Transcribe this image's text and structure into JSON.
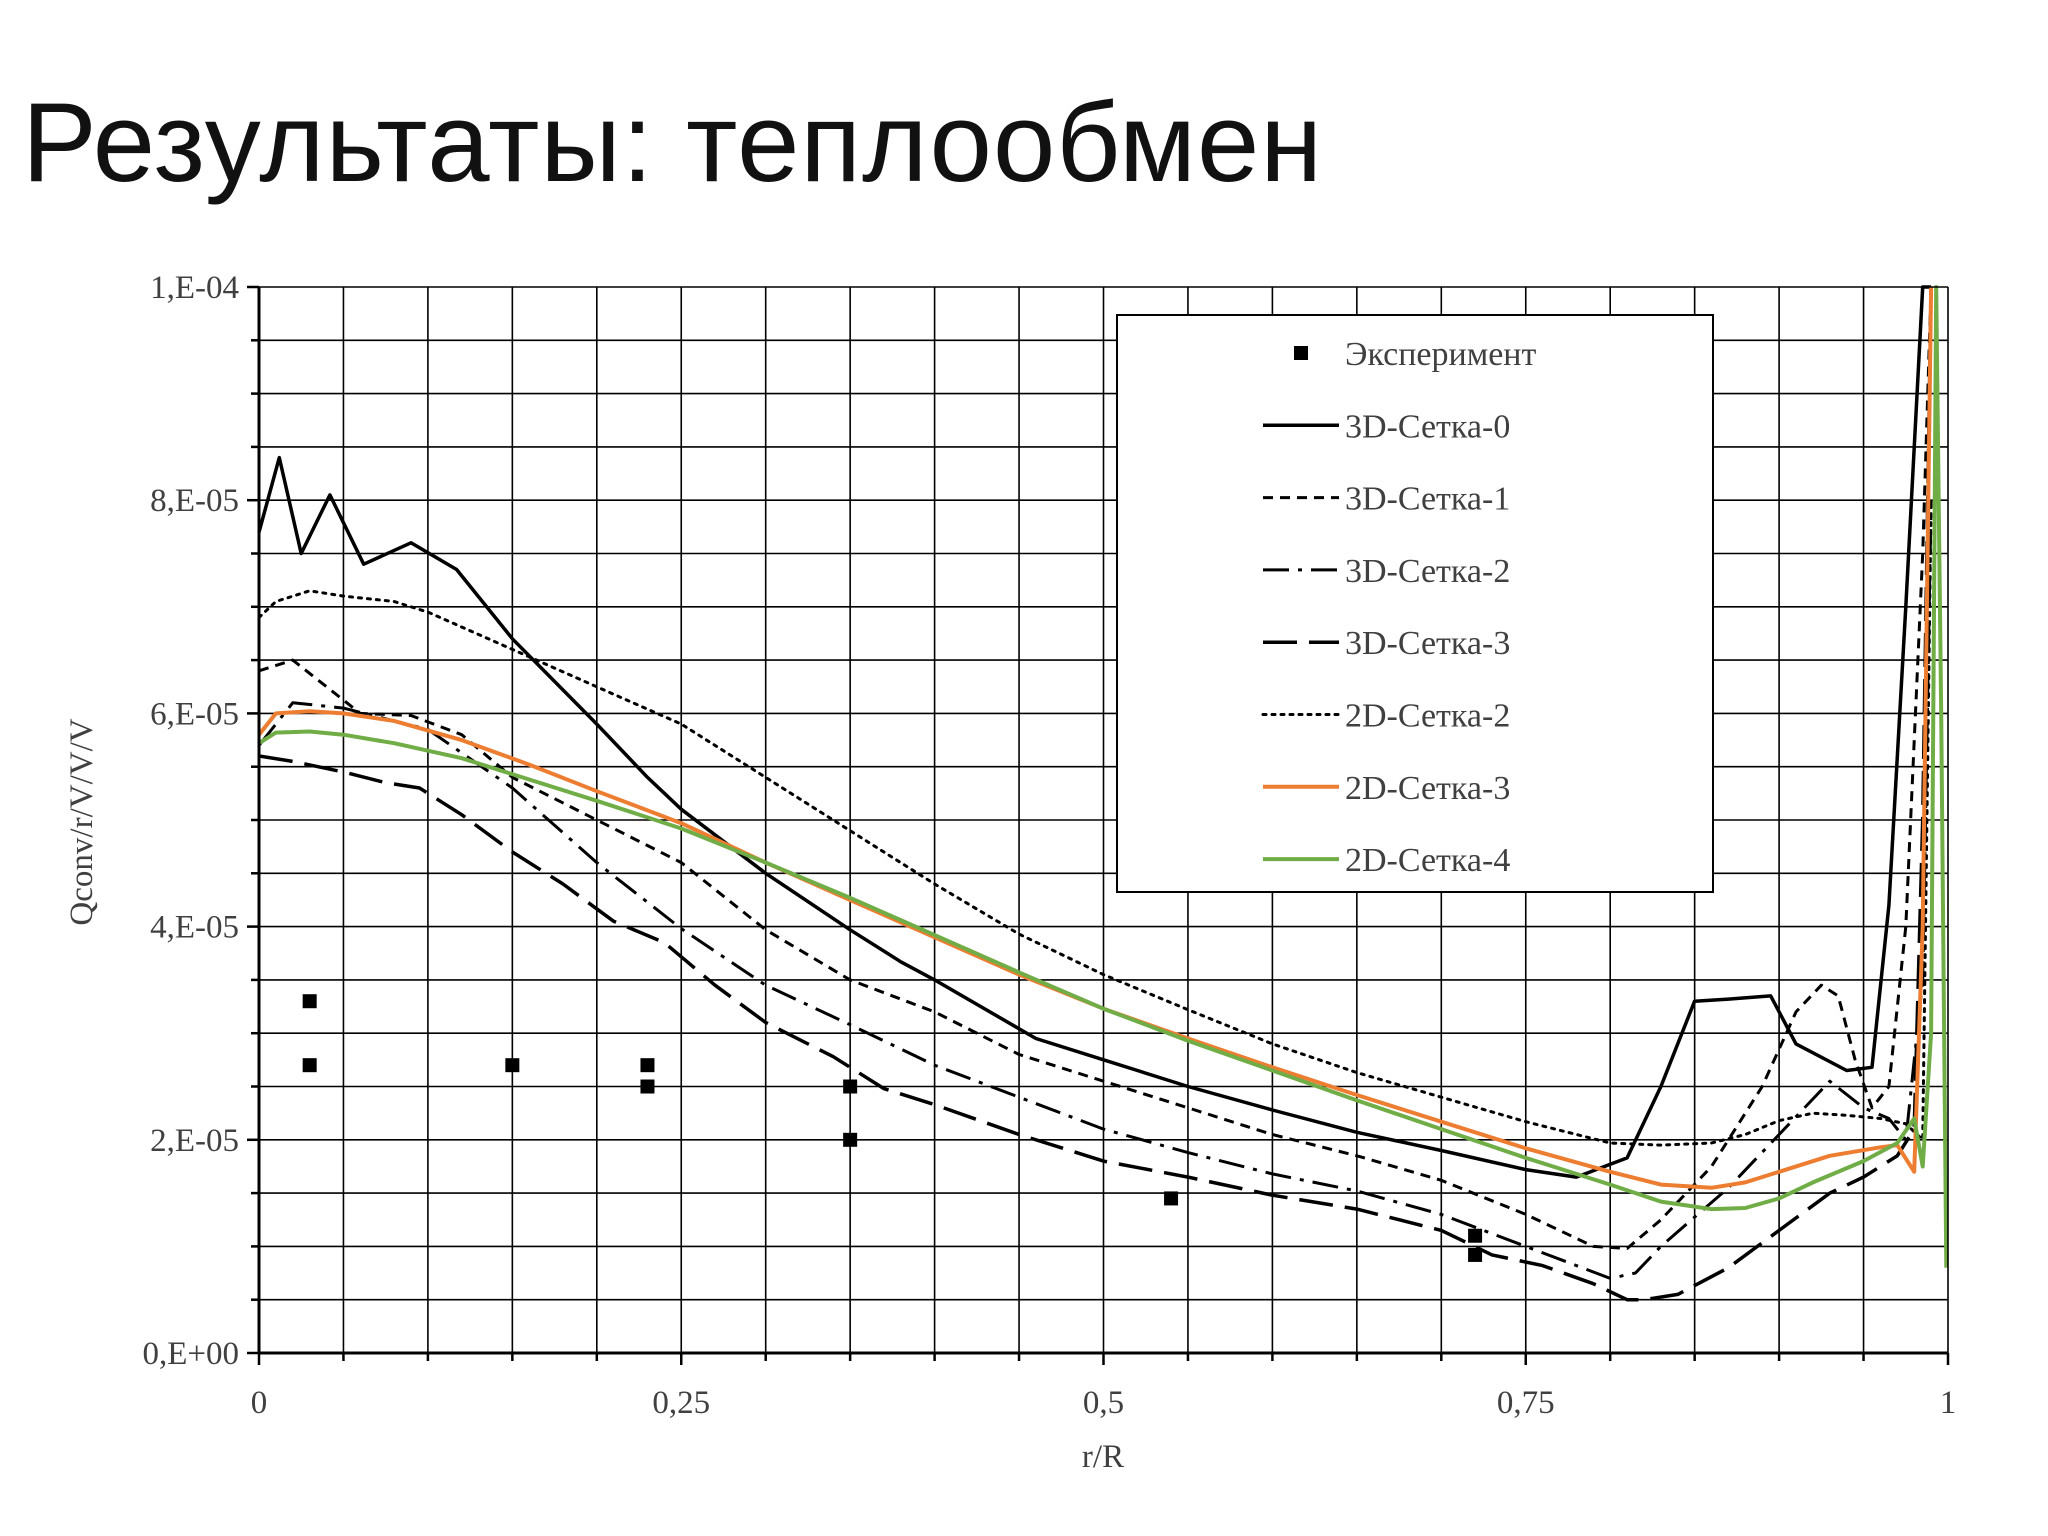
{
  "slide": {
    "title": "Результаты: теплообмен"
  },
  "chart_data": {
    "type": "line",
    "xlabel": "r/R",
    "ylabel": "Qconv/r/V/V/V",
    "xlim": [
      0,
      1
    ],
    "ylim": [
      0,
      0.0001
    ],
    "xticks": [
      {
        "value": 0,
        "label": "0"
      },
      {
        "value": 0.25,
        "label": "0,25"
      },
      {
        "value": 0.5,
        "label": "0,5"
      },
      {
        "value": 0.75,
        "label": "0,75"
      },
      {
        "value": 1,
        "label": "1"
      }
    ],
    "yticks": [
      {
        "value": 0,
        "label": "0,E+00"
      },
      {
        "value": 2e-05,
        "label": "2,E-05"
      },
      {
        "value": 4e-05,
        "label": "4,E-05"
      },
      {
        "value": 6e-05,
        "label": "6,E-05"
      },
      {
        "value": 8e-05,
        "label": "8,E-05"
      },
      {
        "value": 0.0001,
        "label": "1,E-04"
      }
    ],
    "grid": true,
    "legend_position": "top-right",
    "series": [
      {
        "name": "Эксперимент",
        "kind": "markers",
        "color": "#000000",
        "x": [
          0.03,
          0.03,
          0.15,
          0.23,
          0.23,
          0.35,
          0.35,
          0.54,
          0.72,
          0.72
        ],
        "y": [
          3.3e-05,
          2.7e-05,
          2.7e-05,
          2.7e-05,
          2.5e-05,
          2.5e-05,
          2e-05,
          1.45e-05,
          1.1e-05,
          9.2e-06
        ]
      },
      {
        "name": "3D-Сетка-0",
        "kind": "line",
        "style": "solid",
        "color": "#000000",
        "width": 3.5,
        "x": [
          0,
          0.012,
          0.025,
          0.042,
          0.062,
          0.09,
          0.117,
          0.15,
          0.2,
          0.23,
          0.25,
          0.3,
          0.35,
          0.38,
          0.4,
          0.46,
          0.5,
          0.55,
          0.6,
          0.65,
          0.7,
          0.75,
          0.78,
          0.81,
          0.83,
          0.85,
          0.87,
          0.895,
          0.91,
          0.94,
          0.955,
          0.965,
          0.975,
          0.985,
          0.99
        ],
        "y": [
          7.7e-05,
          8.4e-05,
          7.5e-05,
          8.05e-05,
          7.4e-05,
          7.6e-05,
          7.35e-05,
          6.7e-05,
          5.9e-05,
          5.4e-05,
          5.1e-05,
          4.5e-05,
          3.97e-05,
          3.67e-05,
          3.5e-05,
          2.95e-05,
          2.75e-05,
          2.5e-05,
          2.28e-05,
          2.07e-05,
          1.9e-05,
          1.72e-05,
          1.65e-05,
          1.83e-05,
          2.5e-05,
          3.3e-05,
          3.32e-05,
          3.35e-05,
          2.9e-05,
          2.65e-05,
          2.68e-05,
          4.2e-05,
          7e-05,
          0.0001,
          0.0001
        ]
      },
      {
        "name": "3D-Сетка-1",
        "kind": "line",
        "style": "dash",
        "color": "#000000",
        "width": 3,
        "x": [
          0,
          0.02,
          0.04,
          0.06,
          0.09,
          0.12,
          0.15,
          0.2,
          0.25,
          0.3,
          0.35,
          0.38,
          0.4,
          0.45,
          0.5,
          0.55,
          0.6,
          0.65,
          0.7,
          0.75,
          0.79,
          0.81,
          0.83,
          0.86,
          0.89,
          0.91,
          0.925,
          0.935,
          0.945,
          0.955,
          0.965,
          0.975,
          0.985,
          0.99
        ],
        "y": [
          6.4e-05,
          6.5e-05,
          6.25e-05,
          6e-05,
          5.98e-05,
          5.8e-05,
          5.4e-05,
          5e-05,
          4.6e-05,
          3.97e-05,
          3.5e-05,
          3.32e-05,
          3.2e-05,
          2.8e-05,
          2.55e-05,
          2.3e-05,
          2.05e-05,
          1.85e-05,
          1.62e-05,
          1.3e-05,
          1e-05,
          9.8e-06,
          1.25e-05,
          1.75e-05,
          2.5e-05,
          3.2e-05,
          3.45e-05,
          3.35e-05,
          2.75e-05,
          2.3e-05,
          2.5e-05,
          4e-05,
          7.5e-05,
          0.0001
        ]
      },
      {
        "name": "3D-Сетка-2",
        "kind": "line",
        "style": "dashdot",
        "color": "#000000",
        "width": 3,
        "x": [
          0,
          0.02,
          0.05,
          0.1,
          0.15,
          0.2,
          0.25,
          0.3,
          0.35,
          0.4,
          0.45,
          0.5,
          0.55,
          0.6,
          0.65,
          0.7,
          0.75,
          0.8,
          0.815,
          0.83,
          0.87,
          0.9,
          0.93,
          0.95,
          0.965,
          0.975,
          0.985,
          0.99
        ],
        "y": [
          5.7e-05,
          6.1e-05,
          6.05e-05,
          5.85e-05,
          5.3e-05,
          4.6e-05,
          3.98e-05,
          3.45e-05,
          3.08e-05,
          2.7e-05,
          2.4e-05,
          2.1e-05,
          1.88e-05,
          1.68e-05,
          1.52e-05,
          1.3e-05,
          1e-05,
          7e-06,
          7.5e-06,
          1e-05,
          1.55e-05,
          2.05e-05,
          2.55e-05,
          2.3e-05,
          2.2e-05,
          2e-05,
          3.5e-05,
          8e-05
        ]
      },
      {
        "name": "3D-Сетка-3",
        "kind": "line",
        "style": "longdash",
        "color": "#000000",
        "width": 3.5,
        "x": [
          0,
          0.02,
          0.05,
          0.075,
          0.095,
          0.12,
          0.15,
          0.18,
          0.21,
          0.24,
          0.27,
          0.3,
          0.34,
          0.37,
          0.4,
          0.45,
          0.5,
          0.55,
          0.6,
          0.65,
          0.7,
          0.73,
          0.76,
          0.79,
          0.81,
          0.82,
          0.84,
          0.87,
          0.9,
          0.93,
          0.95,
          0.97,
          0.98,
          0.985,
          0.99
        ],
        "y": [
          5.6e-05,
          5.55e-05,
          5.45e-05,
          5.35e-05,
          5.3e-05,
          5.05e-05,
          4.7e-05,
          4.4e-05,
          4.05e-05,
          3.85e-05,
          3.45e-05,
          3.1e-05,
          2.78e-05,
          2.48e-05,
          2.33e-05,
          2.05e-05,
          1.8e-05,
          1.65e-05,
          1.48e-05,
          1.35e-05,
          1.15e-05,
          9.2e-06,
          8.2e-06,
          6.5e-06,
          5e-06,
          5e-06,
          5.5e-06,
          8e-06,
          1.15e-05,
          1.5e-05,
          1.65e-05,
          1.85e-05,
          2.1e-05,
          5e-05,
          0.0001
        ]
      },
      {
        "name": "2D-Сетка-2",
        "kind": "line",
        "style": "dot",
        "color": "#000000",
        "width": 3,
        "x": [
          0,
          0.01,
          0.03,
          0.05,
          0.08,
          0.1,
          0.15,
          0.2,
          0.25,
          0.3,
          0.35,
          0.4,
          0.45,
          0.5,
          0.55,
          0.6,
          0.65,
          0.7,
          0.75,
          0.8,
          0.83,
          0.86,
          0.88,
          0.9,
          0.92,
          0.94,
          0.96,
          0.975,
          0.985,
          0.99
        ],
        "y": [
          6.9e-05,
          7.05e-05,
          7.15e-05,
          7.1e-05,
          7.05e-05,
          6.95e-05,
          6.6e-05,
          6.25e-05,
          5.9e-05,
          5.4e-05,
          4.9e-05,
          4.4e-05,
          3.93e-05,
          3.55e-05,
          3.22e-05,
          2.9e-05,
          2.63e-05,
          2.4e-05,
          2.17e-05,
          1.97e-05,
          1.95e-05,
          1.97e-05,
          2.05e-05,
          2.18e-05,
          2.25e-05,
          2.23e-05,
          2.2e-05,
          2.15e-05,
          2e-05,
          8e-05
        ]
      },
      {
        "name": "2D-Сетка-3",
        "kind": "line",
        "style": "solid",
        "color": "#ED7D31",
        "width": 4,
        "x": [
          0,
          0.01,
          0.03,
          0.05,
          0.08,
          0.12,
          0.16,
          0.2,
          0.25,
          0.3,
          0.35,
          0.4,
          0.45,
          0.5,
          0.55,
          0.6,
          0.65,
          0.7,
          0.75,
          0.8,
          0.83,
          0.86,
          0.88,
          0.9,
          0.93,
          0.96,
          0.97,
          0.98,
          0.985,
          0.99
        ],
        "y": [
          5.8e-05,
          6e-05,
          6.02e-05,
          6e-05,
          5.93e-05,
          5.75e-05,
          5.52e-05,
          5.27e-05,
          4.97e-05,
          4.6e-05,
          4.25e-05,
          3.9e-05,
          3.55e-05,
          3.23e-05,
          2.95e-05,
          2.68e-05,
          2.42e-05,
          2.17e-05,
          1.92e-05,
          1.7e-05,
          1.58e-05,
          1.55e-05,
          1.6e-05,
          1.7e-05,
          1.85e-05,
          1.93e-05,
          1.95e-05,
          1.7e-05,
          4e-05,
          0.0001
        ]
      },
      {
        "name": "2D-Сетка-4",
        "kind": "line",
        "style": "solid",
        "color": "#70AD47",
        "width": 4,
        "x": [
          0,
          0.01,
          0.03,
          0.05,
          0.08,
          0.12,
          0.16,
          0.2,
          0.25,
          0.3,
          0.35,
          0.4,
          0.45,
          0.5,
          0.55,
          0.6,
          0.65,
          0.7,
          0.75,
          0.8,
          0.83,
          0.86,
          0.88,
          0.9,
          0.92,
          0.95,
          0.97,
          0.98,
          0.985,
          0.99,
          0.993,
          0.996,
          0.999
        ],
        "y": [
          5.72e-05,
          5.82e-05,
          5.83e-05,
          5.8e-05,
          5.72e-05,
          5.58e-05,
          5.38e-05,
          5.18e-05,
          4.92e-05,
          4.6e-05,
          4.27e-05,
          3.92e-05,
          3.57e-05,
          3.23e-05,
          2.93e-05,
          2.65e-05,
          2.37e-05,
          2.1e-05,
          1.83e-05,
          1.58e-05,
          1.42e-05,
          1.35e-05,
          1.36e-05,
          1.45e-05,
          1.6e-05,
          1.8e-05,
          1.97e-05,
          2.2e-05,
          1.75e-05,
          3e-05,
          0.0001,
          6e-05,
          8e-06
        ]
      }
    ]
  }
}
